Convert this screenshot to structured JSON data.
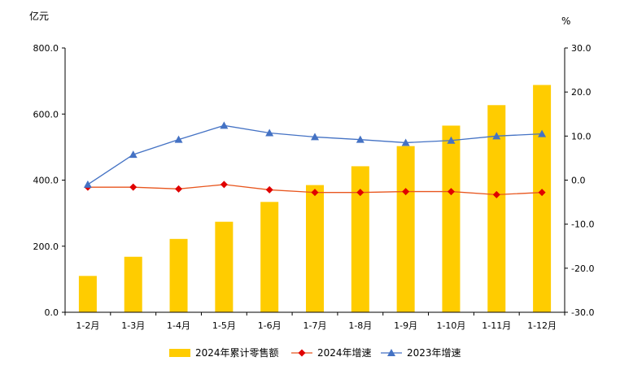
{
  "chart_data": {
    "type": "bar",
    "categories": [
      "1-2月",
      "1-3月",
      "1-4月",
      "1-5月",
      "1-6月",
      "1-7月",
      "1-8月",
      "1-9月",
      "1-10月",
      "1-11月",
      "1-12月"
    ],
    "left_axis": {
      "unit": "亿元",
      "ylim": [
        0,
        800
      ],
      "ticks": [
        "0.0",
        "200.0",
        "400.0",
        "600.0",
        "800.0"
      ]
    },
    "right_axis": {
      "unit": "%",
      "ylim": [
        -30,
        30
      ],
      "ticks": [
        "-30.0",
        "-20.0",
        "-10.0",
        "0.0",
        "10.0",
        "20.0",
        "30.0"
      ]
    },
    "series": [
      {
        "name": "2024年累计零售额",
        "kind": "bar",
        "axis": "left",
        "color": "#FFCC00",
        "values": [
          110,
          168,
          222,
          274,
          334,
          385,
          442,
          503,
          565,
          627,
          688
        ]
      },
      {
        "name": "2024年增速",
        "kind": "line",
        "axis": "right",
        "color": "#E8561E",
        "marker": "diamond",
        "marker_color": "#E00000",
        "values": [
          -1.6,
          -1.6,
          -2.0,
          -1.0,
          -2.2,
          -2.8,
          -2.8,
          -2.6,
          -2.6,
          -3.3,
          -2.8
        ]
      },
      {
        "name": "2023年增速",
        "kind": "line",
        "axis": "right",
        "color": "#4472C4",
        "marker": "triangle",
        "marker_color": "#4472C4",
        "values": [
          -1.0,
          5.8,
          9.2,
          12.4,
          10.7,
          9.8,
          9.2,
          8.5,
          9.0,
          10.0,
          10.5
        ]
      }
    ],
    "grid": false,
    "legend": "bottom"
  }
}
